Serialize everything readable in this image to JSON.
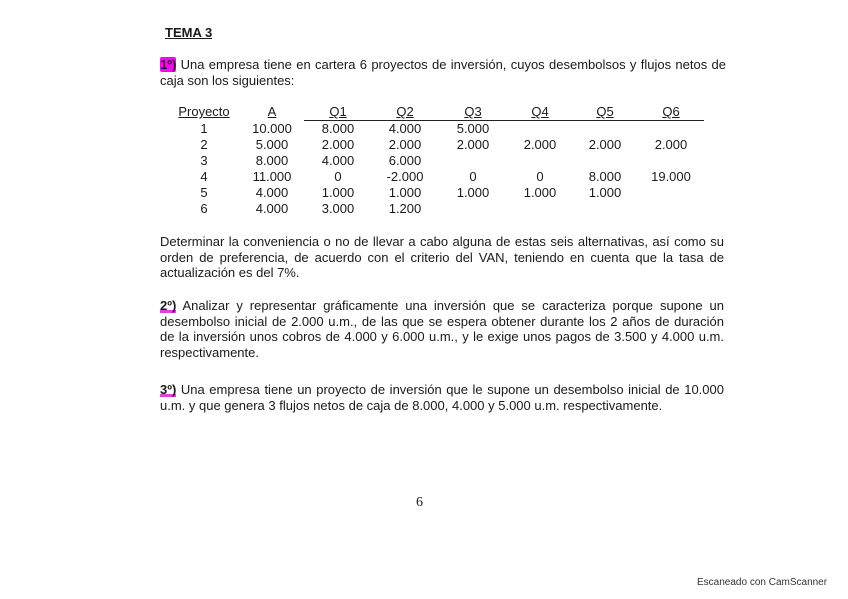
{
  "title": "TEMA 3",
  "q1": {
    "number": "1º)",
    "text": "Una empresa tiene en cartera 6 proyectos de inversión, cuyos desembolsos y flujos netos de caja son los siguientes:",
    "table": {
      "headers": [
        "Proyecto",
        "A",
        "Q1",
        "Q2",
        "Q3",
        "Q4",
        "Q5",
        "Q6"
      ],
      "rows": [
        [
          "1",
          "10.000",
          "8.000",
          "4.000",
          "5.000",
          "",
          "",
          ""
        ],
        [
          "2",
          "5.000",
          "2.000",
          "2.000",
          "2.000",
          "2.000",
          "2.000",
          "2.000"
        ],
        [
          "3",
          "8.000",
          "4.000",
          "6.000",
          "",
          "",
          "",
          ""
        ],
        [
          "4",
          "11.000",
          "0",
          "-2.000",
          "0",
          "0",
          "8.000",
          "19.000"
        ],
        [
          "5",
          "4.000",
          "1.000",
          "1.000",
          "1.000",
          "1.000",
          "1.000",
          ""
        ],
        [
          "6",
          "4.000",
          "3.000",
          "1.200",
          "",
          "",
          "",
          ""
        ]
      ]
    },
    "instruction": "Determinar la conveniencia o no de llevar a cabo alguna de estas seis alternativas, así como su orden de preferencia, de acuerdo con el criterio del VAN, teniendo en cuenta que la tasa de actualización es del 7%."
  },
  "q2": {
    "number": "2º)",
    "text": "Analizar y representar gráficamente una inversión que se caracteriza porque supone un desembolso inicial de 2.000 u.m., de las que se espera obtener durante los 2 años de duración de la inversión unos cobros de 4.000 y 6.000 u.m., y le exige unos pagos de 3.500 y 4.000 u.m. respectivamente."
  },
  "q3": {
    "number": "3º)",
    "text": "Una empresa tiene un proyecto de inversión que le supone un desembolso inicial de 10.000 u.m. y que genera 3 flujos netos de caja de 8.000, 4.000 y 5.000 u.m. respectivamente."
  },
  "page_number": "6",
  "footer": "Escaneado con CamScanner",
  "colors": {
    "highlight": "#ff00ff",
    "text": "#1a1a1a"
  }
}
